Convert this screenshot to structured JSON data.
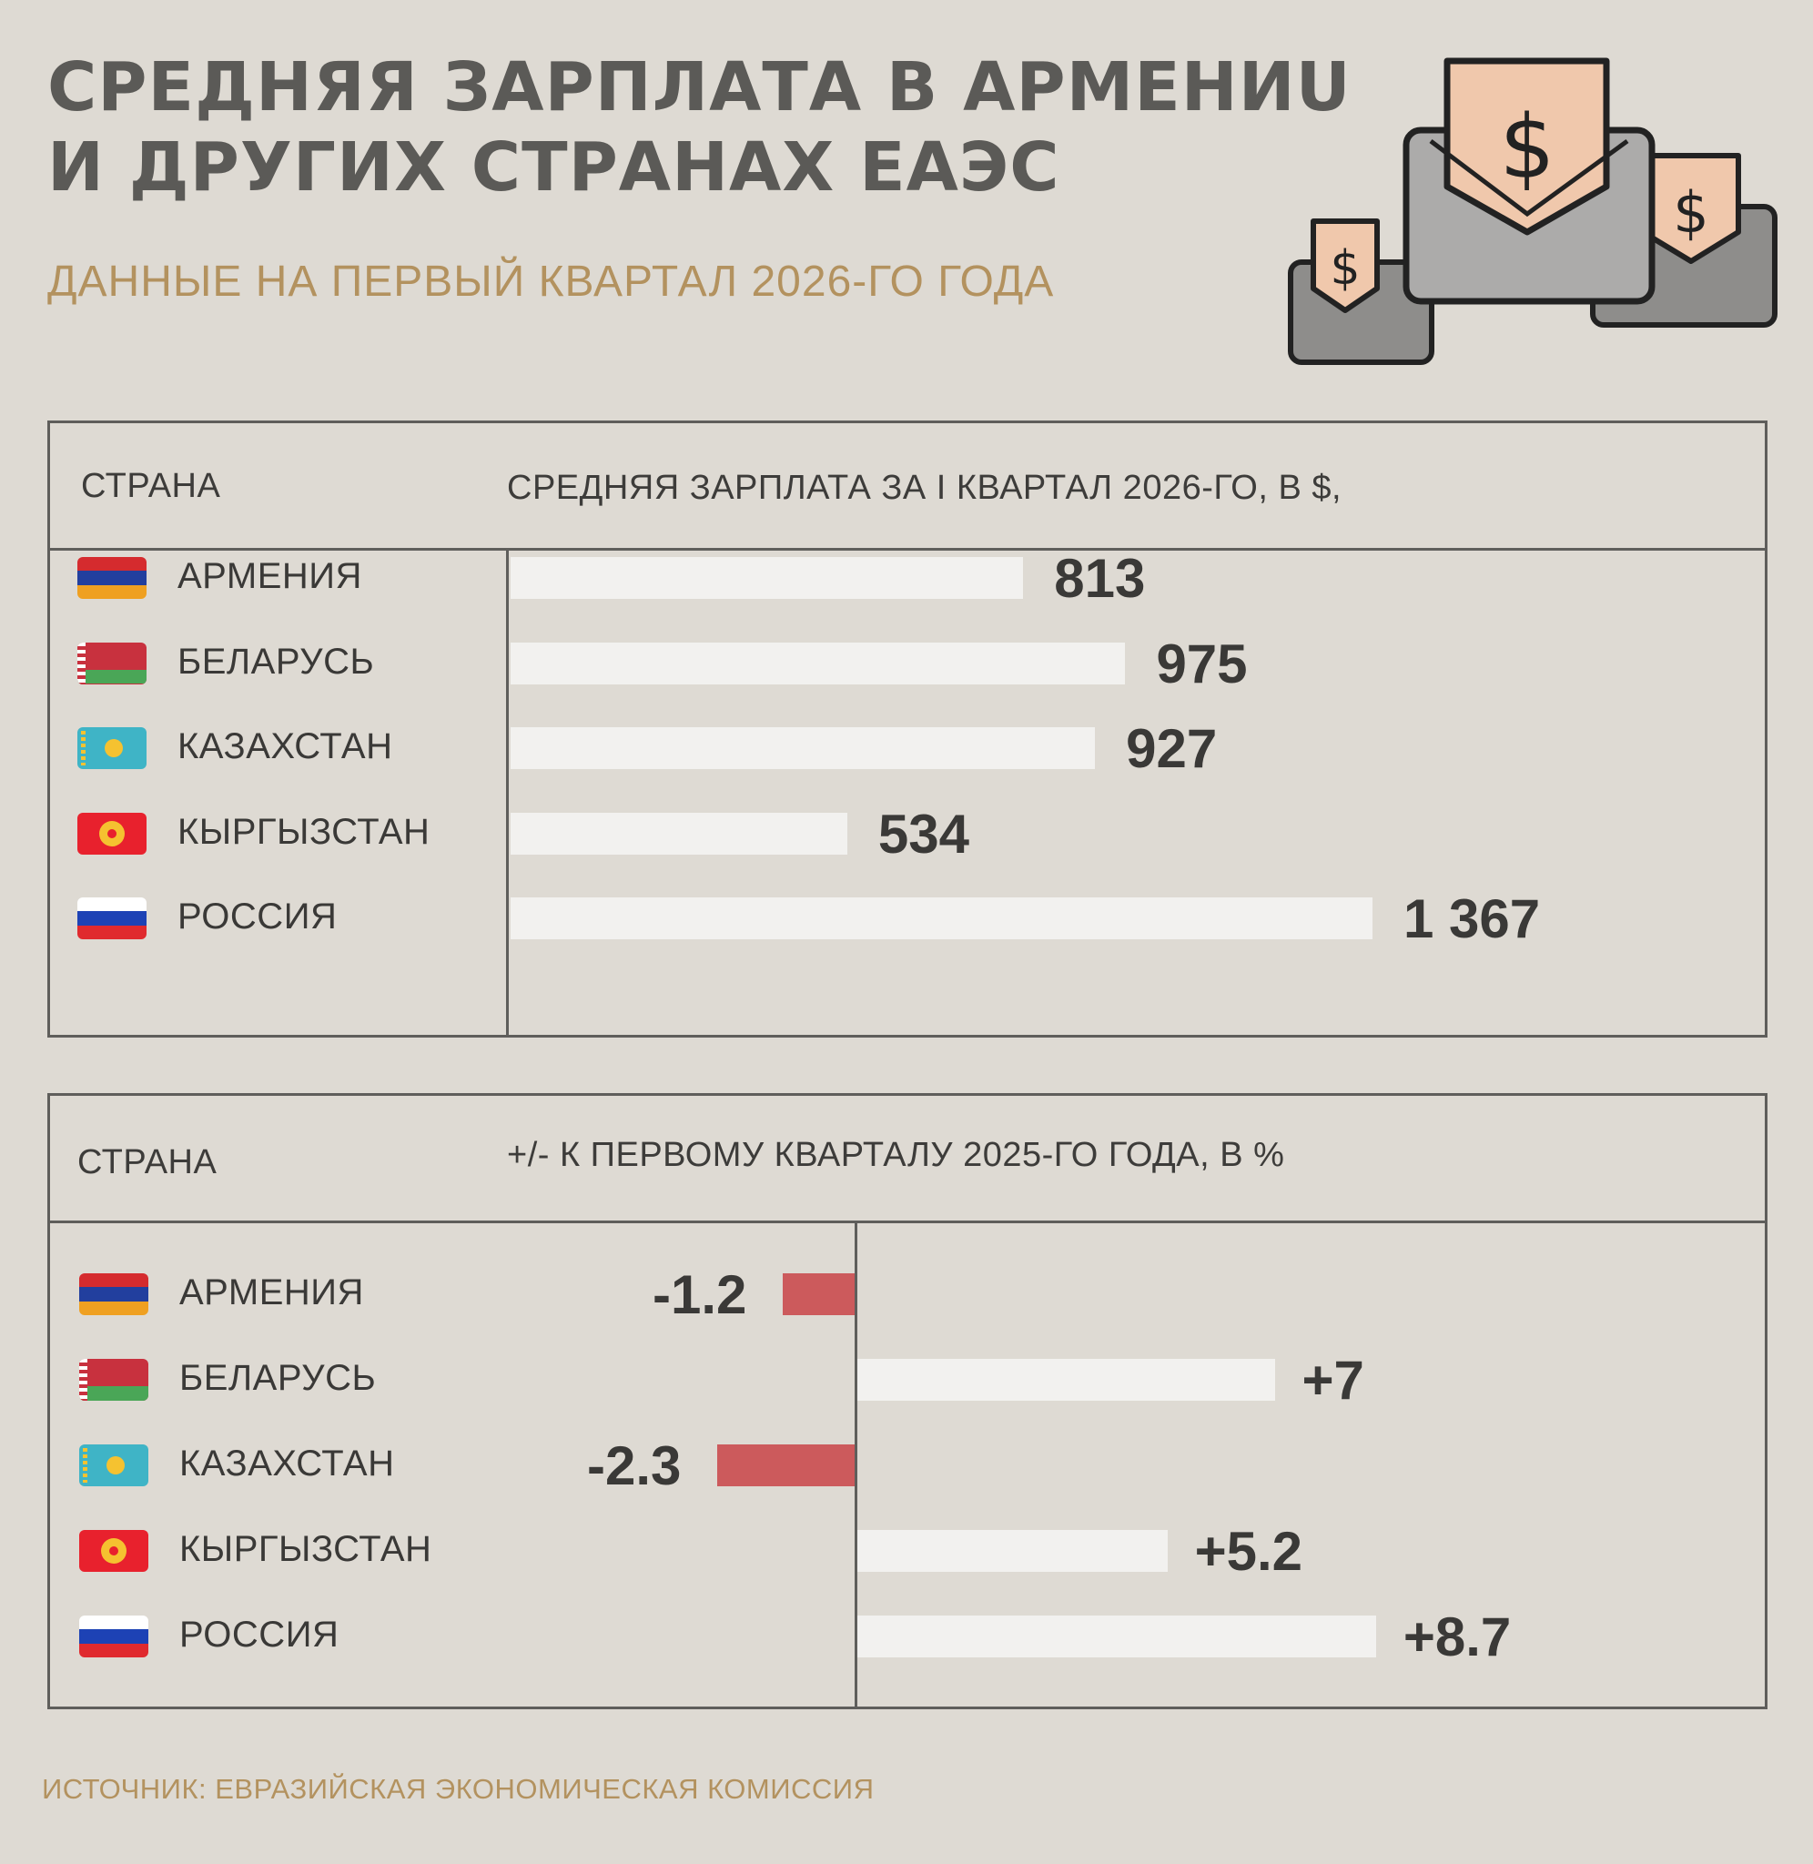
{
  "title_line1": "СРЕДНЯЯ ЗАРПЛАТА В АРМЕНИU",
  "title_line2": "И ДРУГИХ СТРАНАХ ЕАЭС",
  "subtitle": "ДАННЫЕ НА ПЕРВЫЙ КВАРТАЛ 2026-ГО ГОДА",
  "icon": "money-envelopes-icon",
  "icon_glyph": "$",
  "colors": {
    "background": "#dedad3",
    "bar_light": "#f2f1ef",
    "bar_negative": "#cc5a5c",
    "accent": "#b3925f",
    "title": "#5b5a57"
  },
  "source": "ИСТОЧНИК: ЕВРАЗИЙСКАЯ ЭКОНОМИЧЕСКАЯ КОМИССИЯ",
  "chart_data": [
    {
      "type": "bar",
      "orientation": "horizontal",
      "col_label": "СТРАНА",
      "value_label": "СРЕДНЯЯ ЗАРПЛАТА ЗА I КВАРТАЛ 2026-ГО, В $,",
      "categories": [
        "АРМЕНИЯ",
        "БЕЛАРУСЬ",
        "КАЗАХСТАН",
        "КЫРГЫЗСТАН",
        "РОССИЯ"
      ],
      "values": [
        813,
        975,
        927,
        534,
        1367
      ],
      "data_labels": [
        "813",
        "975",
        "927",
        "534",
        "1 367"
      ],
      "flags": [
        "armenia",
        "belarus",
        "kazakhstan",
        "kyrgyzstan",
        "russia"
      ]
    },
    {
      "type": "bar",
      "orientation": "horizontal",
      "diverging": true,
      "col_label": "СТРАНА",
      "value_label": "+/- К ПЕРВОМУ КВАРТАЛУ 2025-ГО ГОДА, В %",
      "categories": [
        "АРМЕНИЯ",
        "БЕЛАРУСЬ",
        "КАЗАХСТАН",
        "КЫРГЫЗСТАН",
        "РОССИЯ"
      ],
      "values": [
        -1.2,
        7,
        -2.3,
        5.2,
        8.7
      ],
      "data_labels": [
        "-1.2",
        "+7",
        "-2.3",
        "+5.2",
        "+8.7"
      ],
      "flags": [
        "armenia",
        "belarus",
        "kazakhstan",
        "kyrgyzstan",
        "russia"
      ]
    }
  ]
}
